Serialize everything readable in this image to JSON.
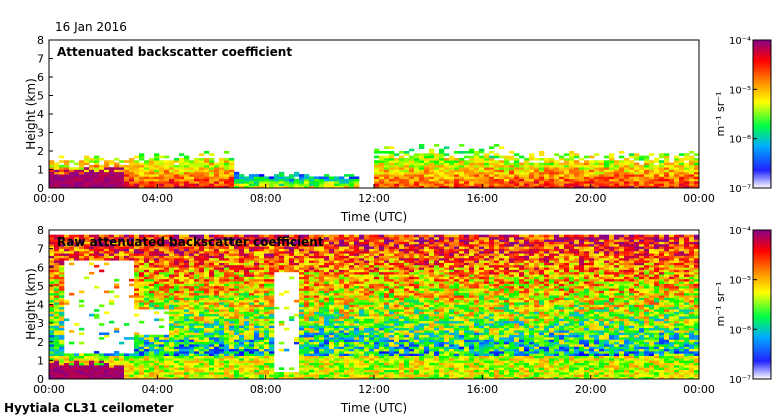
{
  "header": {
    "date": "16 Jan 2016"
  },
  "footer": {
    "site": "Hyytiala CL31 ceilometer"
  },
  "colors": {
    "background": "#ffffff",
    "colormap": [
      "#ffffff",
      "#0000ff",
      "#00aaff",
      "#00ff00",
      "#ffff00",
      "#ff8800",
      "#ff0000",
      "#880088"
    ]
  },
  "chart_data": [
    {
      "type": "heatmap",
      "title": "Attenuated backscatter coefficient",
      "xlabel": "Time (UTC)",
      "ylabel": "Height (km)",
      "xlim": [
        0,
        24
      ],
      "ylim": [
        0,
        8
      ],
      "x_ticks": [
        "00:00",
        "04:00",
        "08:00",
        "12:00",
        "16:00",
        "20:00",
        "00:00"
      ],
      "y_ticks": [
        "0",
        "1",
        "2",
        "3",
        "4",
        "5",
        "6",
        "7",
        "8"
      ],
      "colorbar": {
        "unit": "m⁻¹ sr⁻¹",
        "ticks": [
          "10⁻⁴",
          "10⁻⁵",
          "10⁻⁶",
          "10⁻⁷"
        ],
        "range_log10": [
          -7,
          -4
        ]
      },
      "layers": [
        {
          "t0": 0.0,
          "t1": 3.2,
          "top_km": 1.5,
          "level": 0.55
        },
        {
          "t0": 3.2,
          "t1": 6.8,
          "top_km": 1.7,
          "level": 0.5
        },
        {
          "t0": 6.8,
          "t1": 11.5,
          "top_km": 0.7,
          "level": 0.25
        },
        {
          "t0": 12.0,
          "t1": 17.0,
          "top_km": 2.0,
          "level": 0.45
        },
        {
          "t0": 17.0,
          "t1": 24.0,
          "top_km": 1.7,
          "level": 0.5
        }
      ],
      "dense_surface": [
        {
          "t0": 0.0,
          "t1": 2.8,
          "top_km": 1.2
        }
      ]
    },
    {
      "type": "heatmap",
      "title": "Raw attenuated backscatter coefficient",
      "xlabel": "Time (UTC)",
      "ylabel": "Height (km)",
      "xlim": [
        0,
        24
      ],
      "ylim": [
        0,
        8
      ],
      "x_ticks": [
        "00:00",
        "04:00",
        "08:00",
        "12:00",
        "16:00",
        "20:00",
        "00:00"
      ],
      "y_ticks": [
        "0",
        "1",
        "2",
        "3",
        "4",
        "5",
        "6",
        "7",
        "8"
      ],
      "colorbar": {
        "unit": "m⁻¹ sr⁻¹",
        "ticks": [
          "10⁻⁴",
          "10⁻⁵",
          "10⁻⁶",
          "10⁻⁷"
        ],
        "range_log10": [
          -7,
          -4
        ]
      },
      "blank_regions": [
        {
          "t0": 0.6,
          "t1": 3.1,
          "h0_km": 1.4,
          "h1_km": 6.4
        },
        {
          "t0": 8.3,
          "t1": 9.3,
          "h0_km": 0.4,
          "h1_km": 5.8
        },
        {
          "t0": 3.1,
          "t1": 4.5,
          "h0_km": 2.4,
          "h1_km": 3.8
        }
      ],
      "noise_top_km": 7.7,
      "dense_surface": [
        {
          "t0": 0.0,
          "t1": 2.8,
          "top_km": 1.0
        }
      ]
    }
  ]
}
